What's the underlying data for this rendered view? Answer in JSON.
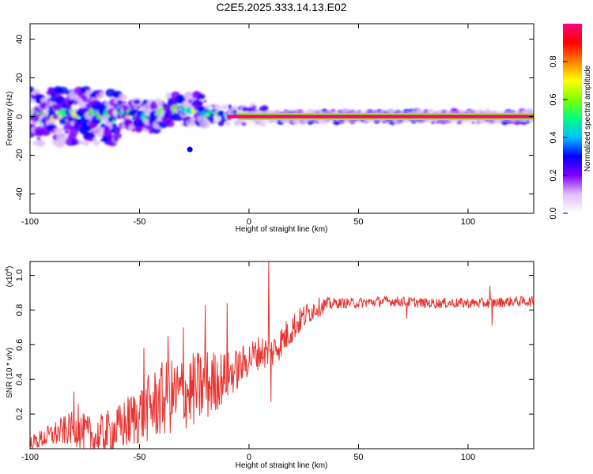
{
  "title": "C2E5.2025.333.14.13.E02",
  "chart_data": [
    {
      "type": "heatmap",
      "xlabel": "Height of straight line (km)",
      "ylabel": "Frequency (Hz)",
      "xlim": [
        -100,
        130
      ],
      "ylim": [
        -50,
        48
      ],
      "xticks": [
        -100,
        -50,
        0,
        50,
        100
      ],
      "yticks": [
        -40,
        -20,
        0,
        20,
        40
      ],
      "colorbar": {
        "label": "Normalized spectral amplitude",
        "range": [
          0.0,
          1.0
        ],
        "ticks": [
          "0.0",
          "0.2",
          "0.4",
          "0.6",
          "0.8"
        ],
        "colors": [
          "#ffffff",
          "#e0c0ff",
          "#8000ff",
          "#0000ff",
          "#00c0ff",
          "#00ff80",
          "#80ff00",
          "#ffff00",
          "#ff8000",
          "#ff0000",
          "#ff0080"
        ]
      }
    },
    {
      "type": "line",
      "xlabel": "Height of straight line (km)",
      "ylabel": "SNR (10 * v/v)",
      "yscale_note": "(x10",
      "yscale_exp": "4",
      "xlim": [
        -100,
        130
      ],
      "ylim": [
        0.0,
        1.08
      ],
      "xticks": [
        -100,
        -50,
        0,
        50,
        100
      ],
      "yticks": [
        0.2,
        0.4,
        0.6,
        0.8,
        1.0
      ],
      "ytick_labels": [
        "0.2",
        "0.4",
        "0.6",
        "0.8",
        "1.0"
      ],
      "color": "#e8322e",
      "trend": {
        "x": [
          -100,
          -90,
          -80,
          -70,
          -65,
          -60,
          -50,
          -40,
          -30,
          -20,
          -10,
          -5,
          0,
          5,
          10,
          15,
          20,
          25,
          30,
          35,
          40,
          50,
          60,
          70,
          80,
          90,
          100,
          110,
          120,
          130
        ],
        "y": [
          0.03,
          0.08,
          0.12,
          0.06,
          0.09,
          0.11,
          0.2,
          0.28,
          0.32,
          0.36,
          0.42,
          0.46,
          0.52,
          0.56,
          0.55,
          0.62,
          0.7,
          0.76,
          0.81,
          0.83,
          0.84,
          0.84,
          0.85,
          0.85,
          0.84,
          0.84,
          0.84,
          0.84,
          0.85,
          0.85
        ]
      },
      "noise": {
        "x": [
          -100,
          -80,
          -60,
          -40,
          -20,
          -10,
          0,
          10,
          20,
          30,
          40,
          130
        ],
        "amp": [
          0.04,
          0.1,
          0.14,
          0.22,
          0.22,
          0.14,
          0.1,
          0.1,
          0.09,
          0.06,
          0.03,
          0.03
        ]
      },
      "spikes": [
        {
          "x": -80,
          "y": 0.33
        },
        {
          "x": -78,
          "y": 0.26
        },
        {
          "x": -48,
          "y": 0.58
        },
        {
          "x": -37,
          "y": 0.65
        },
        {
          "x": -30,
          "y": 0.7
        },
        {
          "x": -20,
          "y": 0.83
        },
        {
          "x": -10,
          "y": 0.84
        },
        {
          "x": 9,
          "y": 1.08
        },
        {
          "x": 10,
          "y": 0.27
        },
        {
          "x": 110,
          "y": 0.94
        },
        {
          "x": 111,
          "y": 0.71
        },
        {
          "x": 72,
          "y": 0.75
        }
      ]
    }
  ]
}
